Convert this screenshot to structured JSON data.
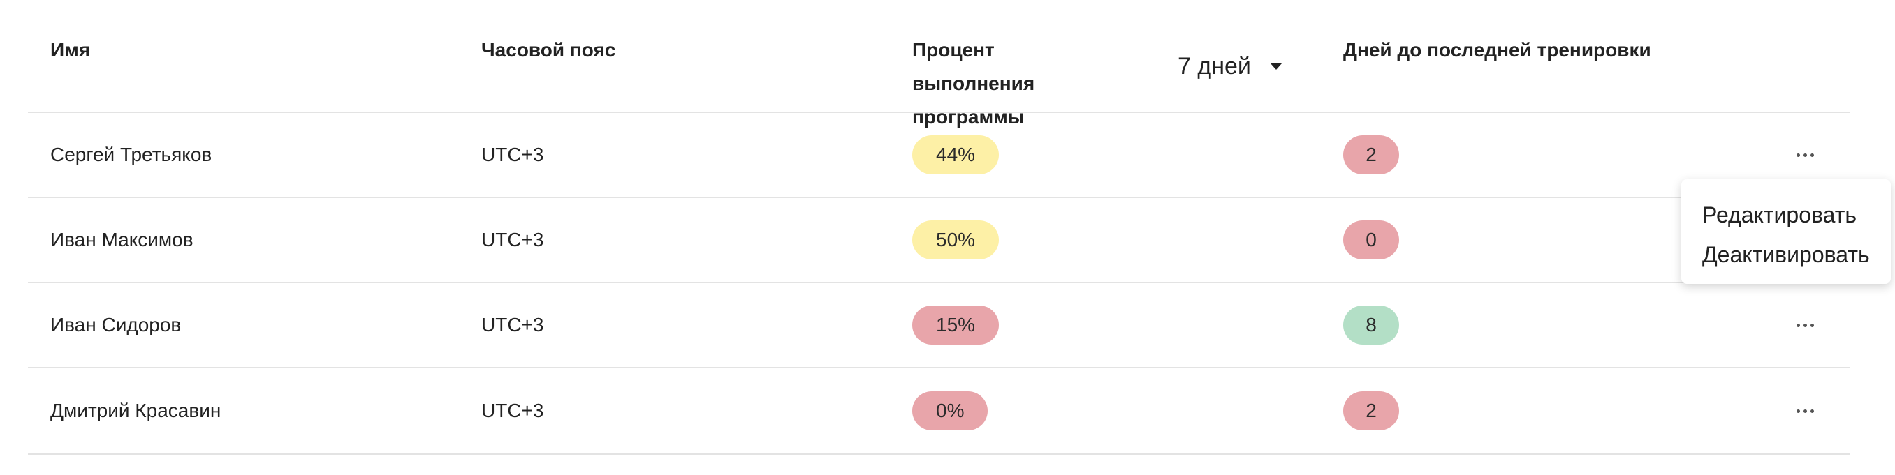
{
  "colors": {
    "yellow_badge": "#fdf0a6",
    "red_badge": "#e8a5aa",
    "green_badge": "#b3dfc6"
  },
  "header": {
    "name": "Имя",
    "timezone": "Часовой пояс",
    "percent_line1": "Процент выполнения",
    "percent_line2": "программы",
    "period_selected": "7 дней",
    "days_since": "Дней до последней тренировки"
  },
  "rows": [
    {
      "name": "Сергей Третьяков",
      "timezone": "UTC+3",
      "percent": "44%",
      "percent_color": "yellow",
      "days": "2",
      "days_color": "red"
    },
    {
      "name": "Иван Максимов",
      "timezone": "UTC+3",
      "percent": "50%",
      "percent_color": "yellow",
      "days": "0",
      "days_color": "red"
    },
    {
      "name": "Иван Сидоров",
      "timezone": "UTC+3",
      "percent": "15%",
      "percent_color": "red",
      "days": "8",
      "days_color": "green"
    },
    {
      "name": "Дмитрий Красавин",
      "timezone": "UTC+3",
      "percent": "0%",
      "percent_color": "red",
      "days": "2",
      "days_color": "red"
    }
  ],
  "row_menu": {
    "edit": "Редактировать",
    "deactivate": "Деактивировать"
  },
  "icons": {
    "more": "more-horizontal-icon",
    "dropdown": "caret-down-icon"
  }
}
